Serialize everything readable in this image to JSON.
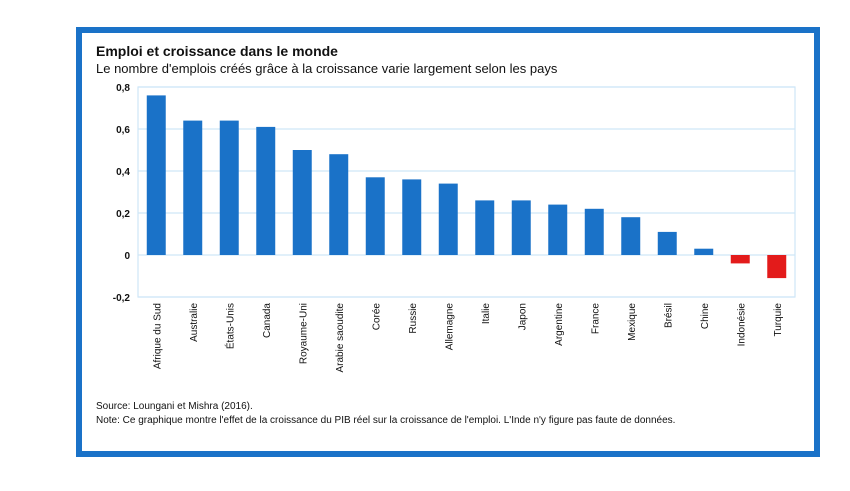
{
  "chart_data": {
    "type": "bar",
    "title": "Emploi et croissance dans le monde",
    "subtitle": "Le nombre d'emplois créés grâce à la croissance varie largement selon les pays",
    "categories": [
      "Afrique du Sud",
      "Australie",
      "États-Unis",
      "Canada",
      "Royaume-Uni",
      "Arabie saoudite",
      "Corée",
      "Russie",
      "Allemagne",
      "Italie",
      "Japon",
      "Argentine",
      "France",
      "Mexique",
      "Brésil",
      "Chine",
      "Indonésie",
      "Turquie"
    ],
    "values": [
      0.76,
      0.64,
      0.64,
      0.61,
      0.5,
      0.48,
      0.37,
      0.36,
      0.34,
      0.26,
      0.26,
      0.24,
      0.22,
      0.18,
      0.11,
      0.03,
      -0.04,
      -0.11
    ],
    "ylim": [
      -0.2,
      0.8
    ],
    "yticks": [
      -0.2,
      0,
      0.2,
      0.4,
      0.6,
      0.8
    ],
    "ytick_labels": [
      "-0,2",
      "0",
      "0,2",
      "0,4",
      "0,6",
      "0,8"
    ],
    "xlabel": "",
    "ylabel": "",
    "grid": true,
    "colors": {
      "positive": "#1a72c8",
      "negative": "#e31b1b",
      "grid": "#cfe6f7",
      "frame": "#1a72c8"
    }
  },
  "source": "Source: Loungani et Mishra (2016).",
  "note": "Note: Ce graphique montre l'effet de la croissance du PIB réel sur la croissance de l'emploi. L'Inde n'y figure pas faute de données."
}
